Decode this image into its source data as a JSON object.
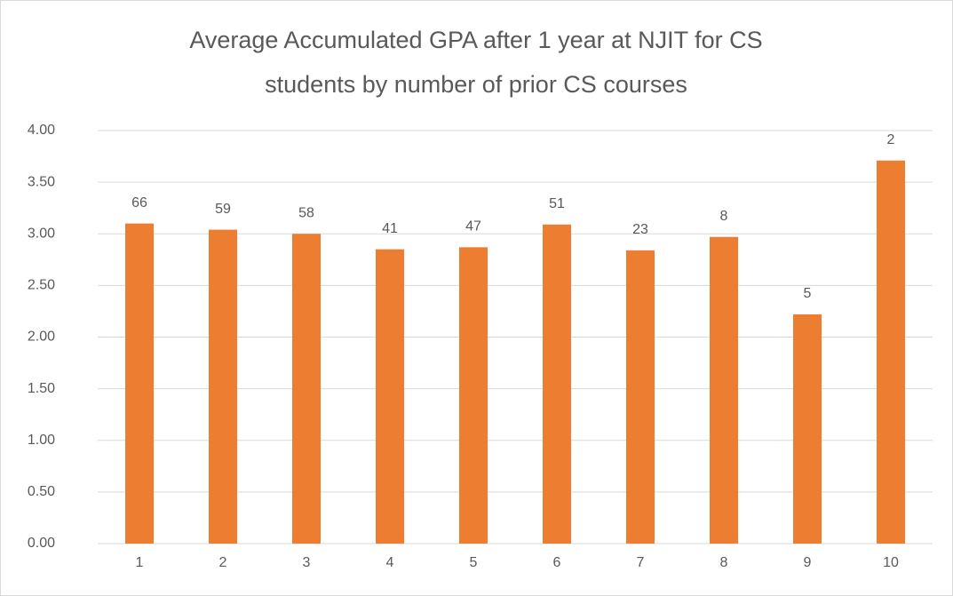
{
  "chart_data": {
    "type": "bar",
    "title": [
      "Average Accumulated GPA after 1 year at NJIT for CS",
      "students by number of prior CS courses"
    ],
    "categories": [
      "1",
      "2",
      "3",
      "4",
      "5",
      "6",
      "7",
      "8",
      "9",
      "10"
    ],
    "values": [
      3.1,
      3.04,
      3.0,
      2.85,
      2.87,
      3.09,
      2.84,
      2.97,
      2.22,
      3.71
    ],
    "counts": [
      66,
      59,
      58,
      41,
      47,
      51,
      23,
      8,
      5,
      2
    ],
    "color": "#ed7d31",
    "ylim": [
      0,
      4
    ],
    "yticks": [
      {
        "value": 0,
        "label": "0.00"
      },
      {
        "value": 0.5,
        "label": "0.50"
      },
      {
        "value": 1,
        "label": "1.00"
      },
      {
        "value": 1.5,
        "label": "1.50"
      },
      {
        "value": 2,
        "label": "2.00"
      },
      {
        "value": 2.5,
        "label": "2.50"
      },
      {
        "value": 3,
        "label": "3.00"
      },
      {
        "value": 3.5,
        "label": "3.50"
      },
      {
        "value": 4,
        "label": "4.00"
      }
    ],
    "grid": true
  }
}
